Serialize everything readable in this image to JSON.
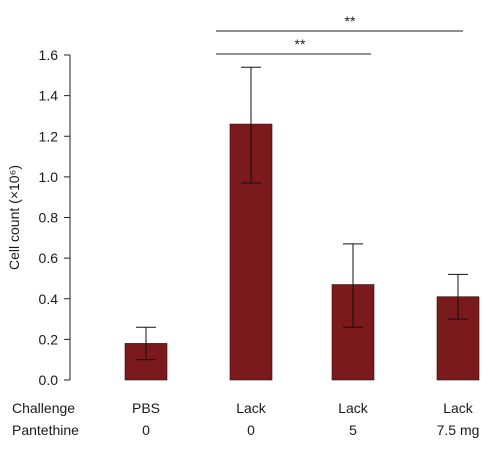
{
  "chart_data": {
    "type": "bar",
    "ylabel": "Cell count (×10⁶)",
    "ylim": [
      0,
      1.6
    ],
    "yticks": [
      "0.0",
      "0.2",
      "0.4",
      "0.6",
      "0.8",
      "1.0",
      "1.2",
      "1.4",
      "1.6"
    ],
    "ytick_values": [
      0,
      0.2,
      0.4,
      0.6,
      0.8,
      1.0,
      1.2,
      1.4,
      1.6
    ],
    "row_labels": [
      "Challenge",
      "Pantethine"
    ],
    "categories": [
      {
        "challenge": "PBS",
        "pantethine": "0"
      },
      {
        "challenge": "Lack",
        "pantethine": "0"
      },
      {
        "challenge": "Lack",
        "pantethine": "5"
      },
      {
        "challenge": "Lack",
        "pantethine": "7.5 mg"
      }
    ],
    "values": [
      0.18,
      1.26,
      0.47,
      0.41
    ],
    "error_low": [
      0.1,
      0.97,
      0.26,
      0.3
    ],
    "error_high": [
      0.26,
      1.54,
      0.67,
      0.52
    ],
    "bar_color": "#7a1a1c",
    "significance": [
      {
        "from": 1,
        "to": 3,
        "label": "**"
      },
      {
        "from": 1,
        "to": 2,
        "label": "**"
      }
    ]
  }
}
